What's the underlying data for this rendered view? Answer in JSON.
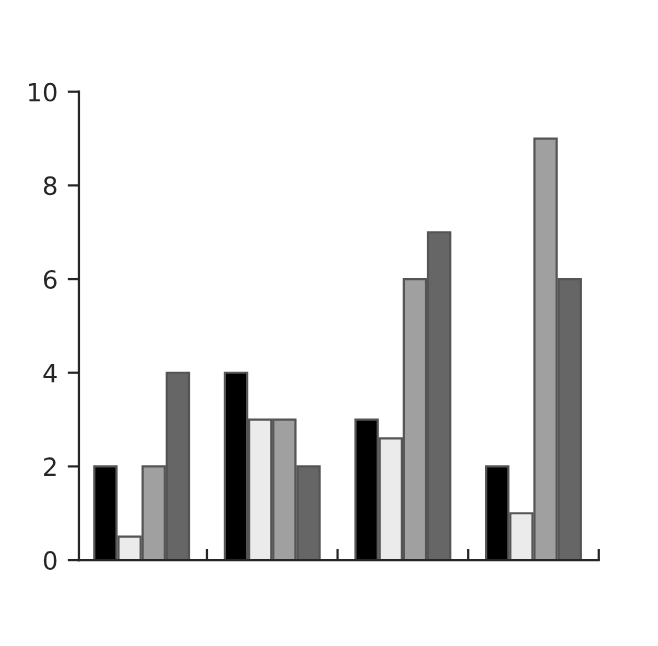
{
  "chart_data": {
    "type": "bar",
    "categories": [
      null,
      null,
      null,
      null
    ],
    "series": [
      {
        "color": "#000000",
        "values": [
          2,
          4,
          3,
          2
        ]
      },
      {
        "color": "#ebebeb",
        "values": [
          0.5,
          3,
          2.6,
          1
        ]
      },
      {
        "color": "#a0a0a0",
        "values": [
          2,
          3,
          6,
          9
        ]
      },
      {
        "color": "#666666",
        "values": [
          4,
          2,
          7,
          6
        ]
      }
    ],
    "ylim": [
      0,
      10
    ],
    "yticks": [
      0,
      2,
      4,
      6,
      8,
      10
    ],
    "grid": false
  }
}
